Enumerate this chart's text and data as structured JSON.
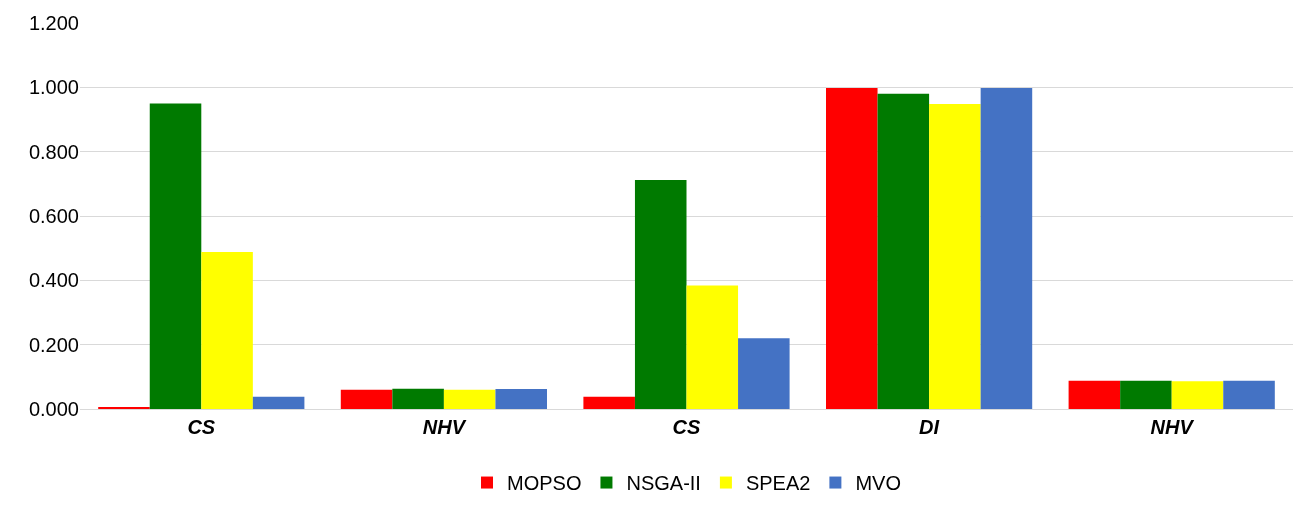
{
  "chart_data": {
    "type": "bar",
    "categories": [
      "CS",
      "NHV",
      "CS",
      "DI",
      "NHV"
    ],
    "series": [
      {
        "name": "MOPSO",
        "color": "#ff0000",
        "values": [
          0.005,
          0.06,
          0.038,
          0.998,
          0.088
        ]
      },
      {
        "name": "NSGA-II",
        "color": "#007a00",
        "values": [
          0.95,
          0.063,
          0.712,
          0.98,
          0.088
        ]
      },
      {
        "name": "SPEA2",
        "color": "#ffff00",
        "values": [
          0.488,
          0.06,
          0.384,
          0.948,
          0.086
        ]
      },
      {
        "name": "MVO",
        "color": "#4472c4",
        "values": [
          0.038,
          0.062,
          0.22,
          0.998,
          0.088
        ]
      }
    ],
    "ylim": [
      0,
      1.2
    ],
    "yticks": [
      {
        "value": 0,
        "label": "0.000"
      },
      {
        "value": 0.2,
        "label": "0.200"
      },
      {
        "value": 0.4,
        "label": "0.400"
      },
      {
        "value": 0.6,
        "label": "0.600"
      },
      {
        "value": 0.8,
        "label": "0.800"
      },
      {
        "value": 1.0,
        "label": "1.000"
      },
      {
        "value": 1.2,
        "label": "1.200"
      }
    ],
    "grid": "y",
    "legend": "bottom"
  }
}
